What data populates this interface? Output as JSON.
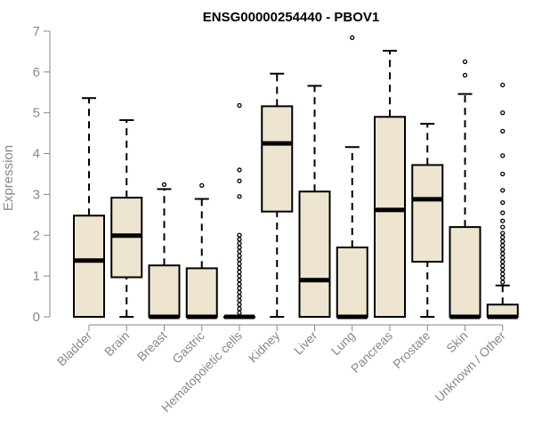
{
  "chart_data": {
    "type": "box",
    "title": "ENSG00000254440 - PBOV1",
    "ylabel": "Expression",
    "xlabel": "",
    "ylim": [
      0,
      7
    ],
    "yticks": [
      0,
      1,
      2,
      3,
      4,
      5,
      6,
      7
    ],
    "box_color": "#ede5cf",
    "categories": [
      "Bladder",
      "Brain",
      "Breast",
      "Gastric",
      "Hematopoietic cells",
      "Kidney",
      "Liver",
      "Lung",
      "Pancreas",
      "Prostate",
      "Skin",
      "Unknown / Other"
    ],
    "boxes": [
      {
        "min": 0,
        "q1": 0,
        "median": 1.38,
        "q3": 2.48,
        "max": 5.36,
        "outliers": []
      },
      {
        "min": 0,
        "q1": 0.97,
        "median": 1.99,
        "q3": 2.92,
        "max": 4.82,
        "outliers": []
      },
      {
        "min": 0,
        "q1": 0,
        "median": 0,
        "q3": 1.26,
        "max": 3.13,
        "outliers": [
          3.24
        ]
      },
      {
        "min": 0,
        "q1": 0,
        "median": 0,
        "q3": 1.19,
        "max": 2.89,
        "outliers": [
          3.22
        ]
      },
      {
        "min": 0,
        "q1": 0,
        "median": 0,
        "q3": 0,
        "max": 0,
        "outliers": [
          0.1,
          0.2,
          0.3,
          0.4,
          0.5,
          0.6,
          0.7,
          0.8,
          0.9,
          1.0,
          1.1,
          1.2,
          1.3,
          1.4,
          1.5,
          1.6,
          1.7,
          1.8,
          1.9,
          2.0,
          2.95,
          3.33,
          3.6,
          5.18
        ]
      },
      {
        "min": 0,
        "q1": 2.58,
        "median": 4.25,
        "q3": 5.16,
        "max": 5.96,
        "outliers": []
      },
      {
        "min": 0,
        "q1": 0,
        "median": 0.9,
        "q3": 3.07,
        "max": 5.66,
        "outliers": []
      },
      {
        "min": 0,
        "q1": 0,
        "median": 0,
        "q3": 1.7,
        "max": 4.16,
        "outliers": [
          6.84
        ]
      },
      {
        "min": 0,
        "q1": 0,
        "median": 2.62,
        "q3": 4.9,
        "max": 6.52,
        "outliers": []
      },
      {
        "min": 0,
        "q1": 1.35,
        "median": 2.88,
        "q3": 3.72,
        "max": 4.73,
        "outliers": []
      },
      {
        "min": 0,
        "q1": 0,
        "median": 0,
        "q3": 2.2,
        "max": 5.46,
        "outliers": [
          5.92,
          6.25
        ]
      },
      {
        "min": 0,
        "q1": 0,
        "median": 0,
        "q3": 0.3,
        "max": 0.77,
        "outliers": [
          0.85,
          0.95,
          1.05,
          1.15,
          1.25,
          1.35,
          1.45,
          1.55,
          1.65,
          1.75,
          1.85,
          1.95,
          2.05,
          2.2,
          2.35,
          2.55,
          2.8,
          3.1,
          3.5,
          3.95,
          4.55,
          5.0,
          5.68
        ]
      }
    ]
  }
}
